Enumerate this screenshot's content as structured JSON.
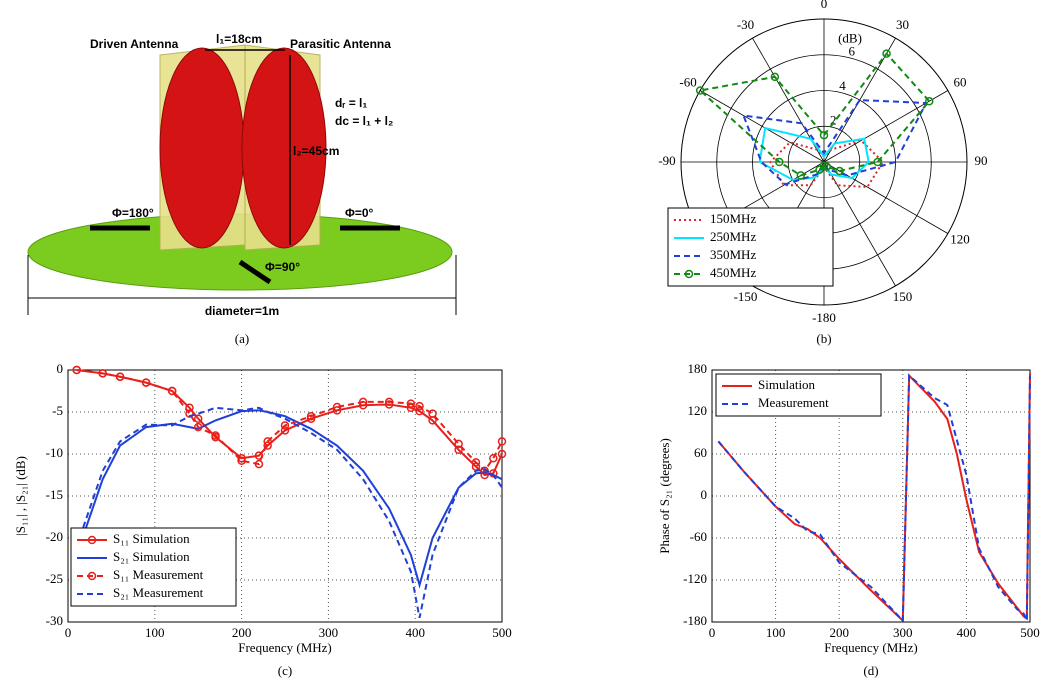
{
  "diagram": {
    "driven_label": "Driven Antenna",
    "parasitic_label": "Parasitic Antenna",
    "l1": "l₁=18cm",
    "l2": "l₂=45cm",
    "dr": "dᵣ = l₁",
    "dc": "dc = l₁ + l₂",
    "phi180": "Φ=180°",
    "phi0": "Φ=0°",
    "phi90": "Φ=90°",
    "diameter": "diameter=1m",
    "caption": "(a)"
  },
  "chart_data": [
    {
      "type": "polar",
      "caption": "(b)",
      "r_label": "(dB)",
      "theta": [
        -180,
        -150,
        -120,
        -90,
        -60,
        -30,
        0,
        30,
        60,
        90,
        120,
        150
      ],
      "thetaticks": [
        0,
        30,
        60,
        90,
        120,
        150,
        -180,
        -150,
        -120,
        -90,
        -60,
        -30
      ],
      "rlim": [
        0,
        8
      ],
      "rticks": [
        2,
        4,
        6
      ],
      "legend": "lower left",
      "series": [
        {
          "name": "150MHz",
          "color": "#d62728",
          "dash": "dotted",
          "marker": null,
          "values": [
            0.3,
            1.5,
            2.6,
            3,
            2.2,
            0.8,
            0.3,
            0.8,
            2.4,
            3.3,
            2.8,
            1.5
          ]
        },
        {
          "name": "250MHz",
          "color": "#00e5ff",
          "dash": "solid",
          "marker": null,
          "values": [
            0.3,
            1,
            2,
            3.6,
            3.8,
            1.5,
            0.3,
            1.2,
            2.6,
            2.5,
            1.8,
            0.8
          ]
        },
        {
          "name": "350MHz",
          "color": "#1f3fd6",
          "dash": "dashed",
          "marker": null,
          "values": [
            0.2,
            0.8,
            2.5,
            3.5,
            5.2,
            2.5,
            0.5,
            4,
            6.6,
            4,
            1.5,
            0.5
          ]
        },
        {
          "name": "450MHz",
          "color": "#138a13",
          "dash": "dashed",
          "marker": "circle",
          "values": [
            0.2,
            0.5,
            1.5,
            2.5,
            8,
            5.5,
            1.5,
            7,
            6.8,
            3,
            1,
            0.3
          ]
        }
      ]
    },
    {
      "type": "line",
      "caption": "(c)",
      "xlabel": "Frequency (MHz)",
      "ylabel": "|S₁₁| , |S₂₁| (dB)",
      "x": [
        10,
        40,
        60,
        90,
        120,
        140,
        150,
        170,
        200,
        220,
        230,
        250,
        280,
        310,
        340,
        370,
        395,
        405,
        420,
        450,
        470,
        480,
        490,
        500
      ],
      "xlim": [
        0,
        500
      ],
      "xticks": [
        0,
        100,
        200,
        300,
        400,
        500
      ],
      "ylim": [
        -30,
        0
      ],
      "yticks": [
        -30,
        -25,
        -20,
        -15,
        -10,
        -5,
        0
      ],
      "grid": true,
      "legend": "lower left",
      "series": [
        {
          "name": "S₁₁ Simulation",
          "color": "#e8201c",
          "dash": "solid",
          "marker": "circle",
          "values": [
            0,
            -0.4,
            -0.8,
            -1.5,
            -2.5,
            -4.5,
            -5.8,
            -8,
            -10.5,
            -10.2,
            -9,
            -7.2,
            -5.8,
            -4.8,
            -4.2,
            -4.1,
            -4.5,
            -4.9,
            -6,
            -9.5,
            -11.5,
            -12.5,
            -12.3,
            -10
          ]
        },
        {
          "name": "S₂₁ Simulation",
          "color": "#1f3fd6",
          "dash": "solid",
          "marker": null,
          "values": [
            -22,
            -13,
            -9,
            -6.8,
            -6.4,
            -6.8,
            -7,
            -6,
            -4.9,
            -4.8,
            -5,
            -5.5,
            -7,
            -9,
            -12,
            -16.5,
            -22,
            -25.6,
            -20,
            -14,
            -12.3,
            -12.2,
            -12.5,
            -13
          ]
        },
        {
          "name": "S₁₁ Measurement",
          "color": "#e8201c",
          "dash": "dashed",
          "marker": "circle",
          "values": [
            0,
            -0.4,
            -0.8,
            -1.5,
            -2.5,
            -5.2,
            -6.8,
            -7.8,
            -10.8,
            -11.2,
            -8.5,
            -6.6,
            -5.5,
            -4.4,
            -3.8,
            -3.8,
            -4,
            -4.3,
            -5.2,
            -8.8,
            -11,
            -12,
            -10.5,
            -8.5
          ]
        },
        {
          "name": "S₂₁ Measurement",
          "color": "#1f3fd6",
          "dash": "dashed",
          "marker": null,
          "values": [
            -21,
            -12,
            -8.5,
            -6.5,
            -6.6,
            -5.5,
            -5.2,
            -4.5,
            -4.8,
            -4.5,
            -5,
            -5.8,
            -7.5,
            -9.5,
            -13,
            -18,
            -24,
            -29.5,
            -22,
            -14,
            -12,
            -11.8,
            -12.5,
            -14
          ]
        }
      ]
    },
    {
      "type": "line",
      "caption": "(d)",
      "xlabel": "Frequency (MHz)",
      "ylabel": "Phase of S₂₁ (degrees)",
      "x": [
        10,
        50,
        100,
        130,
        150,
        170,
        200,
        250,
        300,
        310,
        350,
        370,
        385,
        400,
        420,
        450,
        480,
        490,
        495,
        500
      ],
      "xlim": [
        0,
        500
      ],
      "xticks": [
        0,
        100,
        200,
        300,
        400,
        500
      ],
      "ylim": [
        -180,
        180
      ],
      "yticks": [
        -180,
        -120,
        -60,
        0,
        60,
        120,
        180
      ],
      "grid": true,
      "legend": "upper left",
      "series": [
        {
          "name": "Simulation",
          "color": "#e8201c",
          "dash": "solid",
          "marker": null,
          "values": [
            78,
            35,
            -15,
            -40,
            -47,
            -60,
            -90,
            -135,
            -178,
            172,
            135,
            110,
            60,
            -5,
            -80,
            -125,
            -160,
            -172,
            -175,
            175
          ]
        },
        {
          "name": "Measurement",
          "color": "#1f3fd6",
          "dash": "dashed",
          "marker": null,
          "values": [
            78,
            35,
            -15,
            -32,
            -50,
            -55,
            -95,
            -130,
            -178,
            172,
            140,
            130,
            80,
            30,
            -75,
            -130,
            -162,
            -168,
            -178,
            172
          ]
        }
      ]
    }
  ]
}
